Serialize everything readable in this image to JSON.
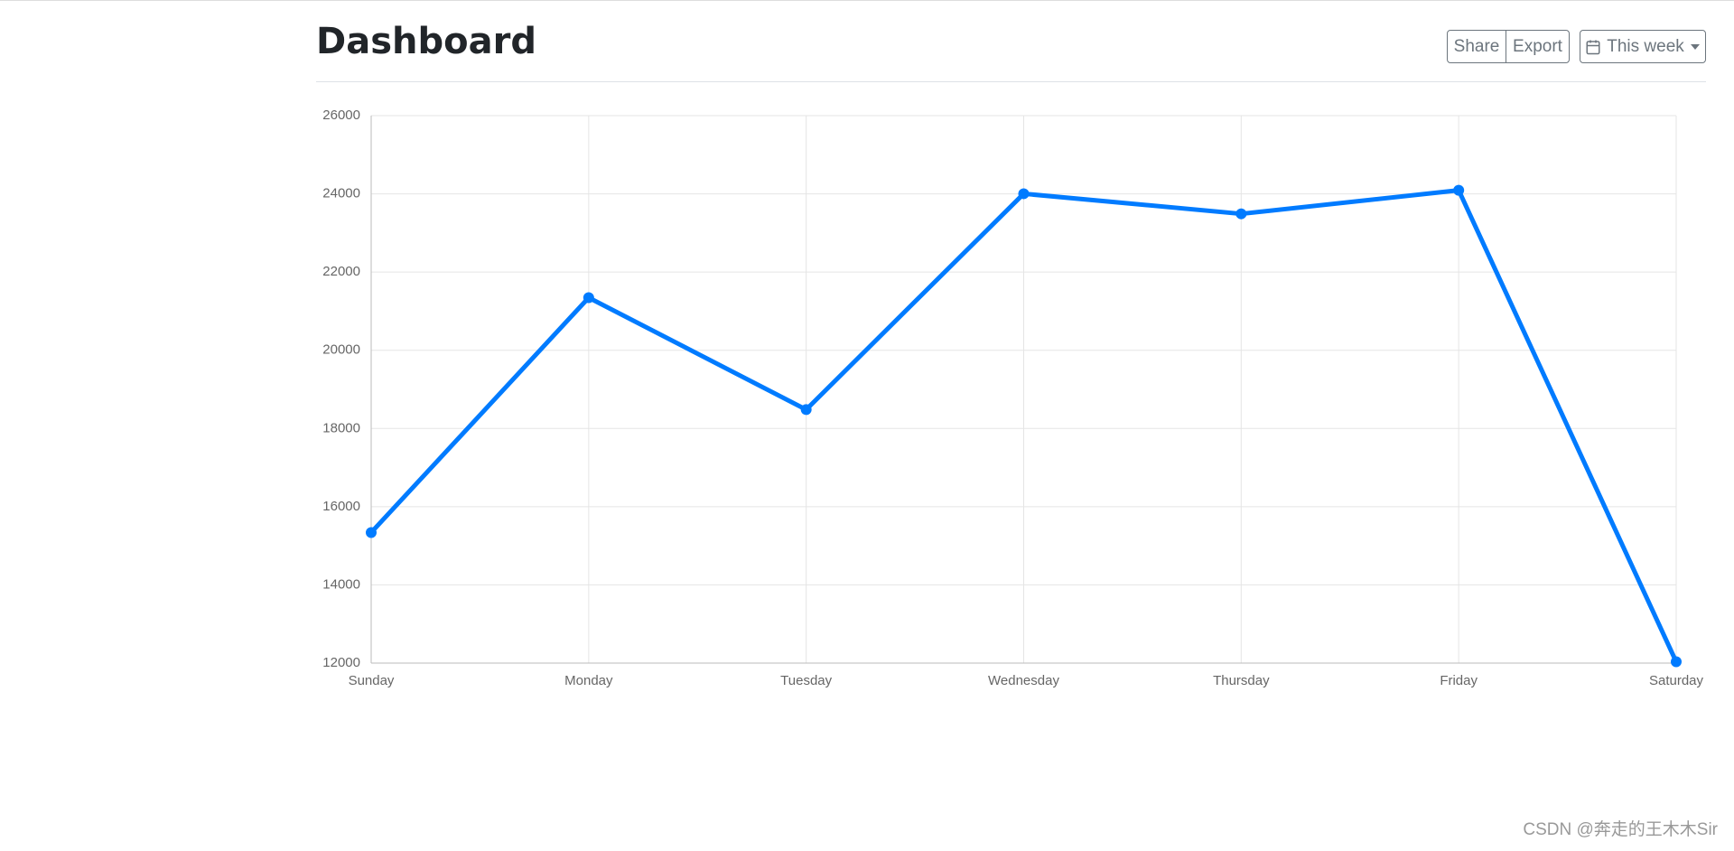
{
  "header": {
    "title": "Dashboard",
    "buttons": [
      "Share",
      "Export"
    ],
    "dropdown": "This week"
  },
  "chart_data": {
    "type": "line",
    "categories": [
      "Sunday",
      "Monday",
      "Tuesday",
      "Wednesday",
      "Thursday",
      "Friday",
      "Saturday"
    ],
    "series": [
      {
        "color": "#007bff",
        "values": [
          15339,
          21345,
          18483,
          24003,
          23489,
          24092,
          12034
        ]
      }
    ],
    "ylim": [
      12000,
      26000
    ],
    "yticks": [
      12000,
      14000,
      16000,
      18000,
      20000,
      22000,
      24000,
      26000
    ],
    "grid": true
  },
  "watermark": "CSDN @奔走的王木木Sir"
}
